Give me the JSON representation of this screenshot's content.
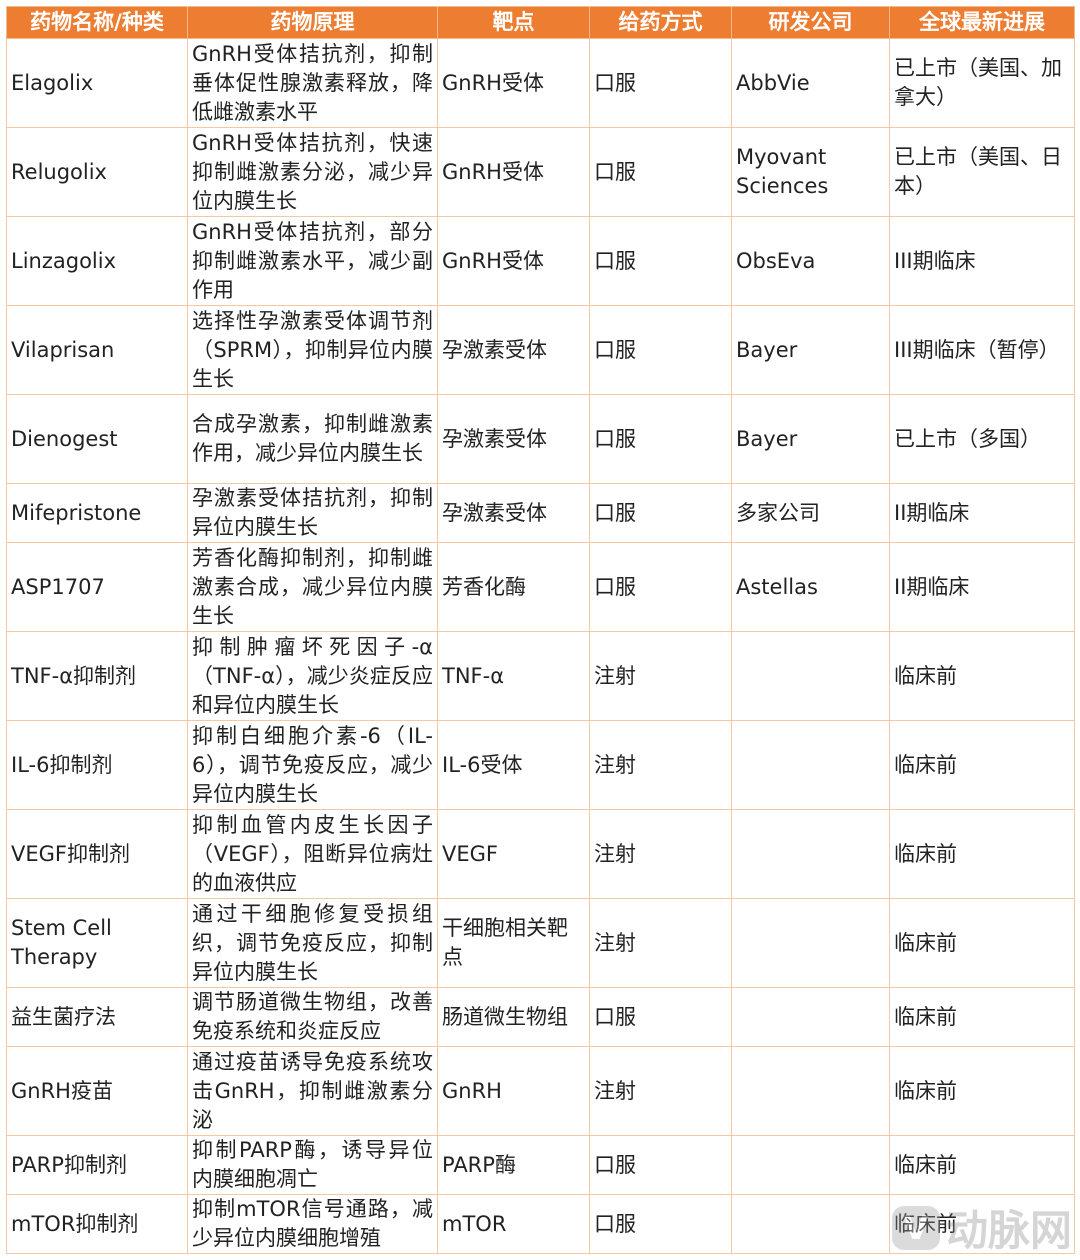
{
  "headers": [
    "药物名称/种类",
    "药物原理",
    "靶点",
    "给药方式",
    "研发公司",
    "全球最新进展"
  ],
  "rows": [
    {
      "name": "Elagolix",
      "mechanism": "GnRH受体拮抗剂，抑制垂体促性腺激素释放，降低雌激素水平",
      "target": "GnRH受体",
      "route": "口服",
      "company": "AbbVie",
      "progress": "已上市（美国、加拿大）",
      "size": "tall"
    },
    {
      "name": "Relugolix",
      "mechanism": "GnRH受体拮抗剂，快速抑制雌激素分泌，减少异位内膜生长",
      "target": "GnRH受体",
      "route": "口服",
      "company": "Myovant Sciences",
      "progress": "已上市（美国、日本）",
      "size": "tall"
    },
    {
      "name": "Linzagolix",
      "mechanism": "GnRH受体拮抗剂，部分抑制雌激素水平，减少副作用",
      "target": "GnRH受体",
      "route": "口服",
      "company": "ObsEva",
      "progress": "III期临床",
      "size": "tall"
    },
    {
      "name": "Vilaprisan",
      "mechanism": "选择性孕激素受体调节剂（SPRM），抑制异位内膜生长",
      "target": "孕激素受体",
      "route": "口服",
      "company": "Bayer",
      "progress": "III期临床（暂停）",
      "size": "tall"
    },
    {
      "name": "Dienogest",
      "mechanism": "合成孕激素，抑制雌激素作用，减少异位内膜生长",
      "target": "孕激素受体",
      "route": "口服",
      "company": "Bayer",
      "progress": "已上市（多国）",
      "size": "tall"
    },
    {
      "name": "Mifepristone",
      "mechanism": "孕激素受体拮抗剂，抑制异位内膜生长",
      "target": "孕激素受体",
      "route": "口服",
      "company": "多家公司",
      "progress": "II期临床",
      "size": "short"
    },
    {
      "name": "ASP1707",
      "mechanism": "芳香化酶抑制剂，抑制雌激素合成，减少异位内膜生长",
      "target": "芳香化酶",
      "route": "口服",
      "company": "Astellas",
      "progress": "II期临床",
      "size": "tall"
    },
    {
      "name": "TNF-α抑制剂",
      "mechanism": "抑制肿瘤坏死因子-α（TNF-α），减少炎症反应和异位内膜生长",
      "target": "TNF-α",
      "route": "注射",
      "company": "",
      "progress": "临床前",
      "size": "tall"
    },
    {
      "name": "IL-6抑制剂",
      "mechanism": "抑制白细胞介素-6（IL-6），调节免疫反应，减少异位内膜生长",
      "target": "IL-6受体",
      "route": "注射",
      "company": "",
      "progress": "临床前",
      "size": "tall"
    },
    {
      "name": "VEGF抑制剂",
      "mechanism": "抑制血管内皮生长因子（VEGF），阻断异位病灶的血液供应",
      "target": "VEGF",
      "route": "注射",
      "company": "",
      "progress": "临床前",
      "size": "tall"
    },
    {
      "name": "Stem Cell Therapy",
      "mechanism": "通过干细胞修复受损组织，调节免疫反应，抑制异位内膜生长",
      "target": "干细胞相关靶点",
      "route": "注射",
      "company": "",
      "progress": "临床前",
      "size": "tall"
    },
    {
      "name": "益生菌疗法",
      "mechanism": "调节肠道微生物组，改善免疫系统和炎症反应",
      "target": "肠道微生物组",
      "route": "口服",
      "company": "",
      "progress": "临床前",
      "size": "short"
    },
    {
      "name": "GnRH疫苗",
      "mechanism": "通过疫苗诱导免疫系统攻击GnRH，抑制雌激素分泌",
      "target": "GnRH",
      "route": "注射",
      "company": "",
      "progress": "临床前",
      "size": "tall"
    },
    {
      "name": "PARP抑制剂",
      "mechanism": "抑制PARP酶，诱导异位内膜细胞凋亡",
      "target": "PARP酶",
      "route": "口服",
      "company": "",
      "progress": "临床前",
      "size": "short"
    },
    {
      "name": "mTOR抑制剂",
      "mechanism": "抑制mTOR信号通路，减少异位内膜细胞增殖",
      "target": "mTOR",
      "route": "口服",
      "company": "",
      "progress": "临床前",
      "size": "short"
    }
  ],
  "watermark": "动脉网"
}
